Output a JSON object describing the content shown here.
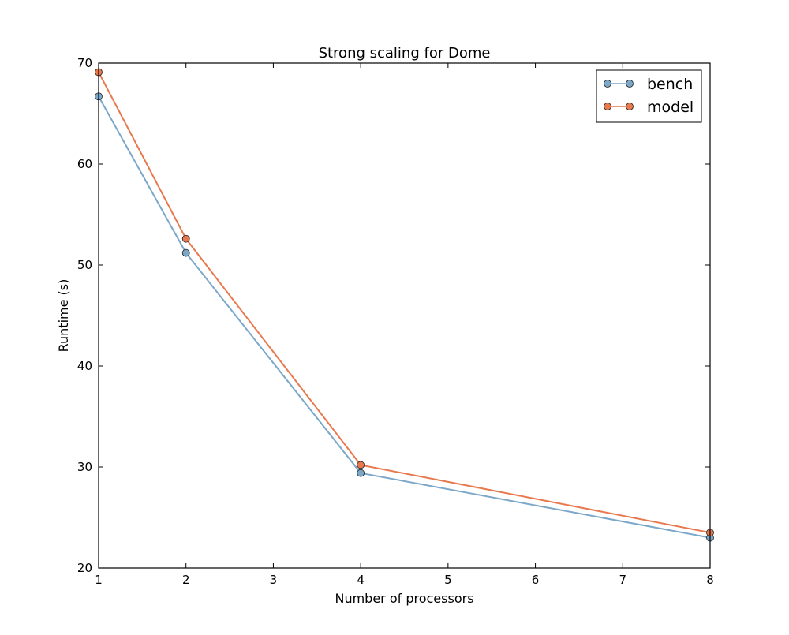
{
  "chart_data": {
    "type": "line",
    "title": "Strong scaling for Dome",
    "xlabel": "Number of processors",
    "ylabel": "Runtime (s)",
    "xlim": [
      1,
      8
    ],
    "ylim": [
      20,
      70
    ],
    "xticks": [
      1,
      2,
      3,
      4,
      5,
      6,
      7,
      8
    ],
    "yticks": [
      20,
      30,
      40,
      50,
      60,
      70
    ],
    "grid": false,
    "legend_position": "top-right",
    "marker": "circle",
    "series": [
      {
        "name": "bench",
        "color": "#7ba7c9",
        "x": [
          1,
          2,
          4,
          8
        ],
        "y": [
          66.7,
          51.2,
          29.4,
          23.0
        ]
      },
      {
        "name": "model",
        "color": "#e8794e",
        "x": [
          1,
          2,
          4,
          8
        ],
        "y": [
          69.1,
          52.6,
          30.2,
          23.5
        ]
      }
    ]
  }
}
